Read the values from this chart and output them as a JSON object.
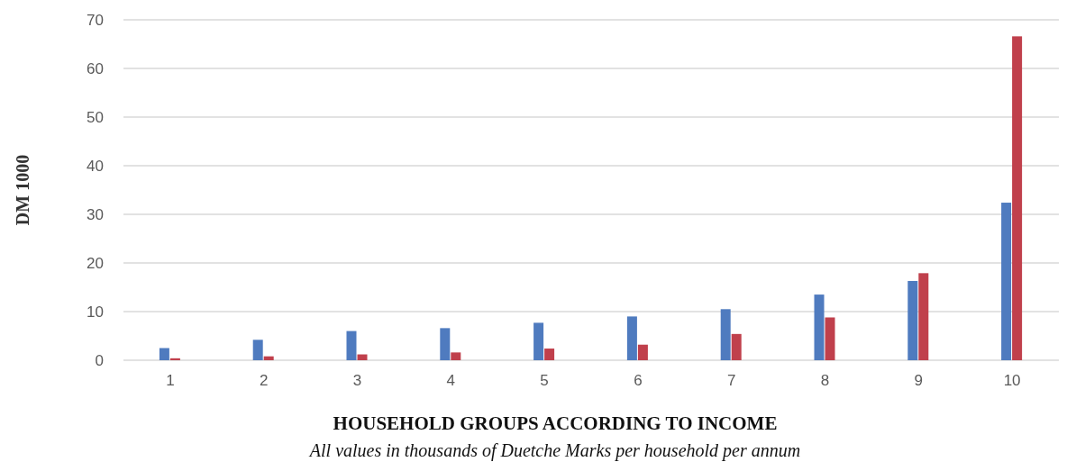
{
  "chart_data": {
    "type": "bar",
    "xlabel": "HOUSEHOLD GROUPS ACCORDING TO INCOME",
    "ylabel": "DM 1000",
    "annotations": [
      "All values in thousands of Duetche Marks per household per annum"
    ],
    "categories": [
      "1",
      "2",
      "3",
      "4",
      "5",
      "6",
      "7",
      "8",
      "9",
      "10"
    ],
    "series": [
      {
        "color": "#4f7bbf",
        "values": [
          2.5,
          4.2,
          6.0,
          6.6,
          7.7,
          9.0,
          10.5,
          13.5,
          16.3,
          32.4
        ]
      },
      {
        "color": "#c0404c",
        "values": [
          0.4,
          0.8,
          1.2,
          1.6,
          2.4,
          3.2,
          5.4,
          8.8,
          17.9,
          66.6
        ]
      }
    ],
    "ylim": [
      0,
      70
    ],
    "yticks": [
      0,
      10,
      20,
      30,
      40,
      50,
      60,
      70
    ],
    "grid": "y"
  }
}
